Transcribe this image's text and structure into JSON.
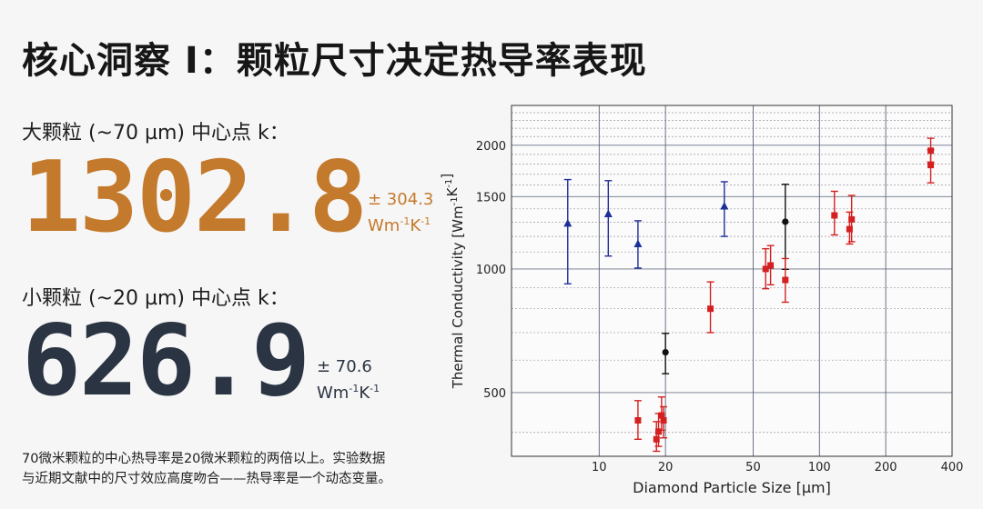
{
  "title": "核心洞察 I：颗粒尺寸决定热导率表现",
  "large": {
    "label": "大颗粒 (~70 µm) 中心点 k：",
    "value": "1302.8",
    "error": "± 304.3",
    "unit_base": "Wm",
    "unit_exp1": "-1",
    "unit_mid": "K",
    "unit_exp2": "-1",
    "color": "#c47a2c"
  },
  "small": {
    "label": "小颗粒 (~20 µm) 中心点 k：",
    "value": "626.9",
    "error": "± 70.6",
    "unit_base": "Wm",
    "unit_exp1": "-1",
    "unit_mid": "K",
    "unit_exp2": "-1",
    "color": "#2b3443"
  },
  "caption": {
    "line1": "70微米颗粒的中心热导率是20微米颗粒的两倍以上。实验数据",
    "line2": "与近期文献中的尺寸效应高度吻合——热导率是一个动态变量。"
  },
  "chart_data": {
    "type": "scatter",
    "xscale": "log",
    "yscale": "log",
    "xlabel": "Diamond Particle Size [µm]",
    "ylabel_base": "Thermal Conductivity [Wm",
    "ylabel_exp": "-1",
    "ylabel_k": "K",
    "ylabel_close": "]",
    "xlim": [
      4,
      400
    ],
    "ylim": [
      350,
      2500
    ],
    "xticks": [
      10,
      20,
      50,
      100,
      200,
      400
    ],
    "yticks": [
      500,
      1000,
      1500,
      2000
    ],
    "grid": true,
    "series": [
      {
        "marker": "triangle",
        "color": "#1f2f9a",
        "points": [
          {
            "x": 7.2,
            "y": 1290,
            "lo": 920,
            "hi": 1650
          },
          {
            "x": 11,
            "y": 1360,
            "lo": 1075,
            "hi": 1640
          },
          {
            "x": 15,
            "y": 1150,
            "lo": 1005,
            "hi": 1310
          },
          {
            "x": 37,
            "y": 1420,
            "lo": 1200,
            "hi": 1630
          }
        ]
      },
      {
        "marker": "circle",
        "color": "#111111",
        "points": [
          {
            "x": 20,
            "y": 627,
            "lo": 556,
            "hi": 697
          },
          {
            "x": 70,
            "y": 1302.8,
            "lo": 998,
            "hi": 1607
          }
        ]
      },
      {
        "marker": "square",
        "color": "#d42020",
        "points": [
          {
            "x": 15,
            "y": 428,
            "lo": 385,
            "hi": 478
          },
          {
            "x": 18.2,
            "y": 385,
            "lo": 360,
            "hi": 425
          },
          {
            "x": 18.6,
            "y": 402,
            "lo": 370,
            "hi": 445
          },
          {
            "x": 19.2,
            "y": 440,
            "lo": 405,
            "hi": 488
          },
          {
            "x": 19.6,
            "y": 428,
            "lo": 388,
            "hi": 462
          },
          {
            "x": 32,
            "y": 800,
            "lo": 700,
            "hi": 930
          },
          {
            "x": 57,
            "y": 1000,
            "lo": 895,
            "hi": 1120
          },
          {
            "x": 60,
            "y": 1020,
            "lo": 915,
            "hi": 1140
          },
          {
            "x": 70,
            "y": 940,
            "lo": 830,
            "hi": 1060
          },
          {
            "x": 117,
            "y": 1350,
            "lo": 1210,
            "hi": 1545
          },
          {
            "x": 137,
            "y": 1250,
            "lo": 1150,
            "hi": 1375
          },
          {
            "x": 140,
            "y": 1320,
            "lo": 1165,
            "hi": 1510
          },
          {
            "x": 320,
            "y": 1940,
            "lo": 1820,
            "hi": 2080
          },
          {
            "x": 320,
            "y": 1790,
            "lo": 1620,
            "hi": 1950
          }
        ]
      }
    ]
  }
}
